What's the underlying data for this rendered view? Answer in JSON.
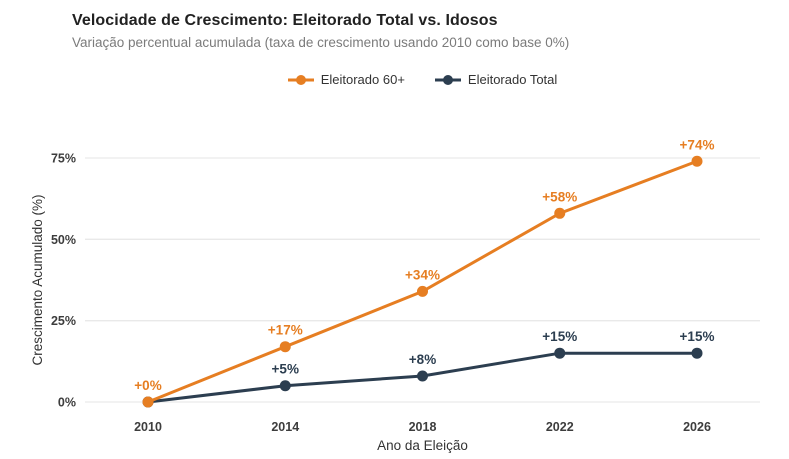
{
  "header": {
    "title": "Velocidade de Crescimento: Eleitorado Total vs. Idosos",
    "subtitle": "Variação percentual acumulada (taxa de crescimento usando 2010 como base 0%)"
  },
  "chart_data": {
    "type": "line",
    "title": "Velocidade de Crescimento: Eleitorado Total vs. Idosos",
    "subtitle": "Variação percentual acumulada (taxa de crescimento usando 2010 como base 0%)",
    "categories": [
      "2010",
      "2014",
      "2018",
      "2022",
      "2026"
    ],
    "series": [
      {
        "name": "Eleitorado 60+",
        "color": "#E67E22",
        "values": [
          0,
          17,
          34,
          58,
          74
        ],
        "labels": [
          "+0%",
          "+17%",
          "+34%",
          "+58%",
          "+74%"
        ]
      },
      {
        "name": "Eleitorado Total",
        "color": "#2C3E50",
        "values": [
          0,
          5,
          8,
          15,
          15
        ],
        "labels": [
          null,
          "+5%",
          "+8%",
          "+15%",
          "+15%"
        ]
      }
    ],
    "xlabel": "Ano da Eleição",
    "ylabel": "Crescimento Acumulado (%)",
    "yticks": {
      "values": [
        0,
        25,
        50,
        75
      ],
      "labels": [
        "0%",
        "25%",
        "50%",
        "75%"
      ]
    },
    "ylim": [
      0,
      80
    ],
    "grid": true,
    "grid_color": "#e9e9e9",
    "legend_position": "top-center",
    "background": "#ffffff"
  }
}
